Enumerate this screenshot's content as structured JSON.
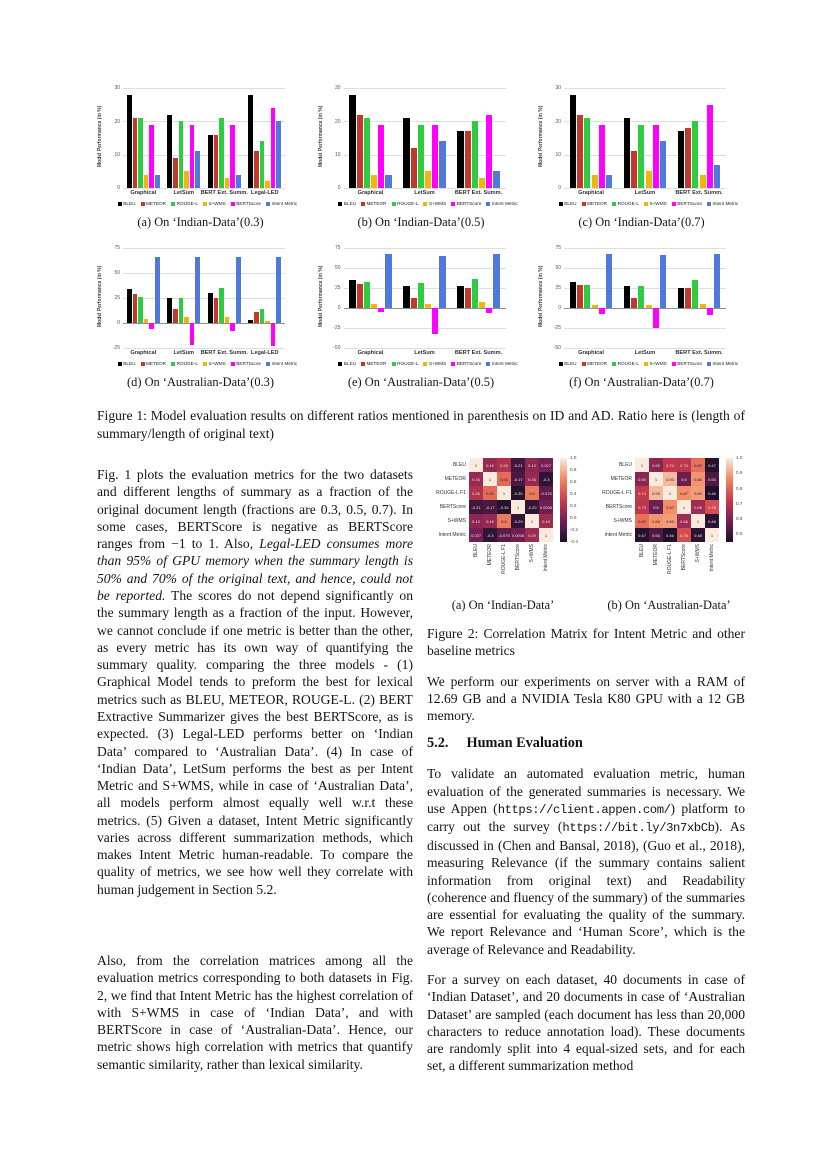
{
  "figure1": {
    "ylabel": "Model Performance (in %)",
    "legend": [
      {
        "name": "BLEU",
        "color": "#000000"
      },
      {
        "name": "METEOR",
        "color": "#c0392b"
      },
      {
        "name": "ROUGE-L",
        "color": "#2ecc40"
      },
      {
        "name": "S+WMS",
        "color": "#f2b50a"
      },
      {
        "name": "BERTScore",
        "color": "#ff00ff"
      },
      {
        "name": "Intent Metric",
        "color": "#5079dd"
      }
    ],
    "caption": "Figure 1: Model evaluation results on different ratios mentioned in parenthesis on ID and AD. Ratio here is (length of summary/length of original text)"
  },
  "figure2": {
    "caption": "Figure 2: Correlation Matrix for Intent Metric and other baseline metrics"
  },
  "chart_data": [
    {
      "type": "bar",
      "caption": "(a) On ‘Indian-Data’(0.3)",
      "ylabel": "Model Performance (in %)",
      "ymin": 0,
      "ymax": 30,
      "yticks": [
        30,
        20,
        10,
        0
      ],
      "categories": [
        "Graphical",
        "LetSum",
        "BERT Ext. Summ.",
        "Legal-LED"
      ],
      "series": [
        {
          "name": "BLEU",
          "values": [
            28,
            22,
            16,
            28
          ]
        },
        {
          "name": "METEOR",
          "values": [
            21,
            9,
            16,
            11
          ]
        },
        {
          "name": "ROUGE-L",
          "values": [
            21,
            20,
            21,
            14
          ]
        },
        {
          "name": "S+WMS",
          "values": [
            4,
            5,
            3,
            2
          ]
        },
        {
          "name": "BERTScore",
          "values": [
            19,
            19,
            19,
            24
          ]
        },
        {
          "name": "Intent Metric",
          "values": [
            4,
            11,
            4,
            20
          ]
        }
      ]
    },
    {
      "type": "bar",
      "caption": "(b) On ‘Indian-Data’(0.5)",
      "ylabel": "Model Performance (in %)",
      "ymin": 0,
      "ymax": 30,
      "yticks": [
        30,
        20,
        10,
        0
      ],
      "categories": [
        "Graphical",
        "LetSum",
        "BERT Ext. Summ."
      ],
      "series": [
        {
          "name": "BLEU",
          "values": [
            28,
            21,
            17
          ]
        },
        {
          "name": "METEOR",
          "values": [
            22,
            12,
            17
          ]
        },
        {
          "name": "ROUGE-L",
          "values": [
            21,
            19,
            20
          ]
        },
        {
          "name": "S+WMS",
          "values": [
            4,
            5,
            3
          ]
        },
        {
          "name": "BERTScore",
          "values": [
            19,
            19,
            22
          ]
        },
        {
          "name": "Intent Metric",
          "values": [
            4,
            14,
            5
          ]
        }
      ]
    },
    {
      "type": "bar",
      "caption": "(c) On ‘Indian-Data’(0.7)",
      "ylabel": "Model Performance (in %)",
      "ymin": 0,
      "ymax": 30,
      "yticks": [
        30,
        20,
        10,
        0
      ],
      "categories": [
        "Graphical",
        "LetSum",
        "BERT Ext. Summ."
      ],
      "series": [
        {
          "name": "BLEU",
          "values": [
            28,
            21,
            17
          ]
        },
        {
          "name": "METEOR",
          "values": [
            22,
            11,
            18
          ]
        },
        {
          "name": "ROUGE-L",
          "values": [
            21,
            19,
            20
          ]
        },
        {
          "name": "S+WMS",
          "values": [
            4,
            5,
            4
          ]
        },
        {
          "name": "BERTScore",
          "values": [
            19,
            19,
            25
          ]
        },
        {
          "name": "Intent Metric",
          "values": [
            4,
            14,
            7
          ]
        }
      ]
    },
    {
      "type": "bar",
      "caption": "(d) On ‘Australian-Data’(0.3)",
      "ylabel": "Model Performance (in %)",
      "ymin": -25,
      "ymax": 75,
      "yticks": [
        75,
        50,
        25,
        0,
        -25
      ],
      "categories": [
        "Graphical",
        "LetSum",
        "BERT Ext. Summ.",
        "Legal-LED"
      ],
      "series": [
        {
          "name": "BLEU",
          "values": [
            34,
            25,
            30,
            3
          ]
        },
        {
          "name": "METEOR",
          "values": [
            29,
            14,
            25,
            11
          ]
        },
        {
          "name": "ROUGE-L",
          "values": [
            26,
            25,
            35,
            14
          ]
        },
        {
          "name": "S+WMS",
          "values": [
            4,
            6,
            6,
            2
          ]
        },
        {
          "name": "BERTScore",
          "values": [
            -6,
            -22,
            -8,
            -23
          ]
        },
        {
          "name": "Intent Metric",
          "values": [
            66,
            66,
            66,
            66
          ]
        }
      ]
    },
    {
      "type": "bar",
      "caption": "(e) On ‘Australian-Data’(0.5)",
      "ylabel": "Model Performance (in %)",
      "ymin": -50,
      "ymax": 75,
      "yticks": [
        75,
        50,
        25,
        0,
        -25,
        -50
      ],
      "categories": [
        "Graphical",
        "LetSum",
        "BERT Ext. Summ."
      ],
      "series": [
        {
          "name": "BLEU",
          "values": [
            35,
            27,
            28
          ]
        },
        {
          "name": "METEOR",
          "values": [
            30,
            12,
            25
          ]
        },
        {
          "name": "ROUGE-L",
          "values": [
            32,
            31,
            36
          ]
        },
        {
          "name": "S+WMS",
          "values": [
            5,
            5,
            7
          ]
        },
        {
          "name": "BERTScore",
          "values": [
            -5,
            -32,
            -6
          ]
        },
        {
          "name": "Intent Metric",
          "values": [
            67,
            65,
            67
          ]
        }
      ]
    },
    {
      "type": "bar",
      "caption": "(f) On ‘Australian-Data’(0.7)",
      "ylabel": "Model Performance (in %)",
      "ymin": -50,
      "ymax": 75,
      "yticks": [
        75,
        50,
        25,
        0,
        -25,
        -50
      ],
      "categories": [
        "Graphical",
        "LetSum",
        "BERT Ext. Summ."
      ],
      "series": [
        {
          "name": "BLEU",
          "values": [
            33,
            28,
            25
          ]
        },
        {
          "name": "METEOR",
          "values": [
            29,
            13,
            25
          ]
        },
        {
          "name": "ROUGE-L",
          "values": [
            29,
            27,
            35
          ]
        },
        {
          "name": "S+WMS",
          "values": [
            4,
            4,
            5
          ]
        },
        {
          "name": "BERTScore",
          "values": [
            -8,
            -25,
            -9
          ]
        },
        {
          "name": "Intent Metric",
          "values": [
            67,
            66,
            67
          ]
        }
      ]
    },
    {
      "type": "heatmap",
      "caption": "(a) On ‘Indian-Data’",
      "labels": [
        "BLEU",
        "METEOR",
        "ROUGE-L F1",
        "BERTScore",
        "S+WMS",
        "Intent Metric"
      ],
      "matrix": [
        [
          1,
          0.16,
          0.26,
          -0.21,
          0.13,
          0.027
        ],
        [
          0.16,
          1,
          0.55,
          -0.17,
          0.16,
          -0.3
        ],
        [
          0.26,
          0.55,
          1,
          -0.35,
          0.6,
          -0.075
        ],
        [
          -0.21,
          -0.17,
          -0.35,
          1,
          -0.29,
          0.0008
        ],
        [
          0.13,
          0.16,
          0.6,
          -0.29,
          1,
          0.19
        ],
        [
          0.027,
          -0.3,
          -0.075,
          0.0008,
          0.19,
          1
        ]
      ],
      "vmin": -0.4,
      "vmax": 1.0,
      "colorbar_ticks": [
        1.0,
        0.8,
        0.6,
        0.4,
        0.2,
        0.0,
        -0.2,
        -0.4
      ]
    },
    {
      "type": "heatmap",
      "caption": "(b) On ‘Australian-Data’",
      "labels": [
        "BLEU",
        "METEOR",
        "ROUGE-L F1",
        "BERTScore",
        "S+WMS",
        "Intent Metric"
      ],
      "matrix": [
        [
          1,
          0.65,
          0.74,
          0.73,
          0.83,
          0.47
        ],
        [
          0.65,
          1,
          0.93,
          0.6,
          0.88,
          0.55
        ],
        [
          0.74,
          0.93,
          1,
          0.87,
          0.89,
          0.46
        ],
        [
          0.73,
          0.6,
          0.87,
          1,
          0.68,
          0.78
        ],
        [
          0.83,
          0.88,
          0.89,
          0.68,
          1,
          0.48
        ],
        [
          0.47,
          0.55,
          0.46,
          0.78,
          0.48,
          1
        ]
      ],
      "vmin": 0.45,
      "vmax": 1.0,
      "colorbar_ticks": [
        1.0,
        0.9,
        0.8,
        0.7,
        0.6,
        0.5
      ]
    }
  ],
  "body": {
    "left": {
      "para1": [
        {
          "t": "Fig. 1 plots the evaluation metrics for the two datasets and different lengths of summary as a fraction of the original document length (fractions are 0.3, 0.5, 0.7). In some cases, BERTScore is negative as BERTScore ranges from −1 to 1. Also, "
        },
        {
          "t": "Legal-LED consumes more than 95% of GPU memory when the summary length is 50% and 70% of the original text, and hence, could not be reported.",
          "i": true
        },
        {
          "t": " The scores do not depend significantly on the summary length as a fraction of the input. However, we cannot conclude if one metric is better than the other, as every metric has its own way of quantifying the summary quality. comparing the three models - (1) Graphical Model tends to preform the best for lexical metrics such as BLEU, METEOR, ROUGE-L. (2) BERT Extractive Summarizer gives the best BERTScore, as is expected. (3) Legal-LED performs better on ‘Indian Data’ compared to ‘Australian Data’. (4) In case of ‘Indian Data’, LetSum performs the best as per Intent Metric and S+WMS, while in case of ‘Australian Data’, all models perform almost equally well w.r.t these metrics. (5) Given a dataset, Intent Metric significantly varies across different summarization methods, which makes Intent Metric human-readable. To compare the quality of metrics, we see how well they correlate with human judgement in Section 5.2."
        }
      ],
      "para2": [
        {
          "t": "Also, from the correlation matrices among all the evaluation metrics corresponding to both datasets in Fig. 2, we find that Intent Metric has the highest correlation of with S+WMS in case of ‘Indian Data’, and with BERTScore in case of ‘Australian-Data’. Hence, our metric shows high correlation with metrics that quantify semantic similarity, rather than lexical similarity."
        }
      ]
    },
    "right": {
      "para_hardware": [
        {
          "t": "We perform our experiments on server with a RAM of 12.69 GB and a NVIDIA Tesla K80 GPU with a 12 GB memory."
        }
      ],
      "section_number": "5.2.",
      "section_title": "Human Evaluation",
      "para_human": [
        {
          "t": "To validate an automated evaluation metric, human evaluation of the generated summaries is necessary. We use Appen ("
        },
        {
          "t": "https://client.appen.com/",
          "m": true
        },
        {
          "t": ") platform to carry out the survey ("
        },
        {
          "t": "https://bit.ly/3n7xbCb",
          "m": true
        },
        {
          "t": "). As discussed in (Chen and Bansal, 2018), (Guo et al., 2018), measuring Relevance (if the summary contains salient information from original text) and Readability (coherence and fluency of the summary) of the summaries are essential for evaluating the quality of the summary. We report Relevance and ‘Human Score’, which is the average of Relevance and Readability."
        }
      ],
      "para_survey": [
        {
          "t": "For a survey on each dataset, 40 documents in case of ‘Indian Dataset’, and 20 documents in case of ‘Australian Dataset’ are sampled (each document has less than 20,000 characters to reduce annotation load). These documents are randomly split into 4 equal-sized sets, and for each set, a different summarization method"
        }
      ]
    }
  }
}
